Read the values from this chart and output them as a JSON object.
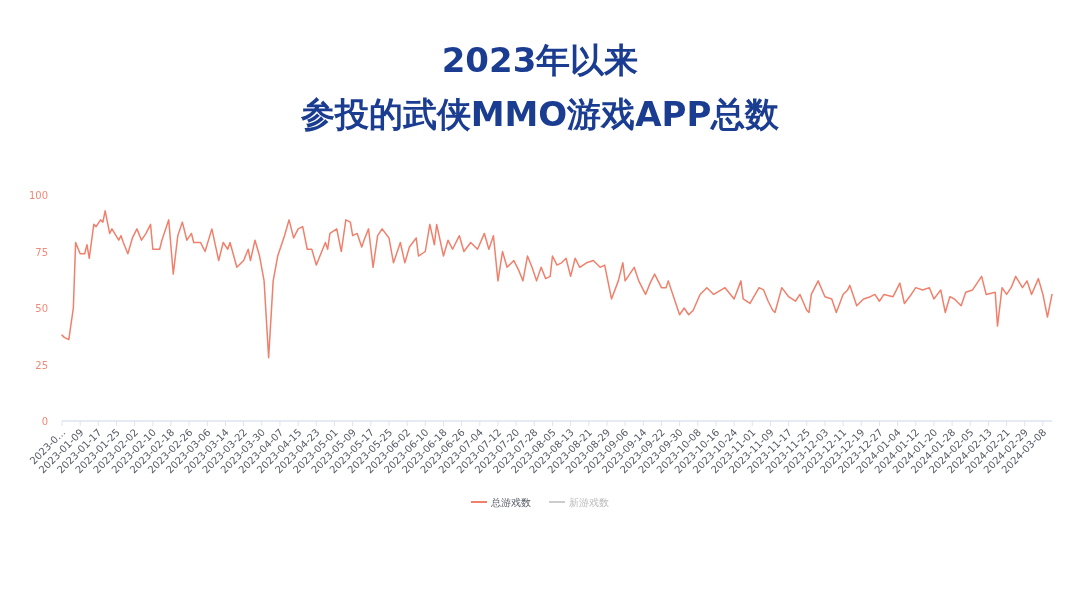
{
  "chart_data": {
    "type": "line",
    "title": "2023年以来",
    "subtitle": "参投的武侠MMO游戏APP总数",
    "x": [
      "2023-01-01",
      "2023-01-02",
      "2023-01-04",
      "2023-01-06",
      "2023-01-07",
      "2023-01-09",
      "2023-01-11",
      "2023-01-12",
      "2023-01-13",
      "2023-01-15",
      "2023-01-16",
      "2023-01-18",
      "2023-01-19",
      "2023-01-20",
      "2023-01-22",
      "2023-01-23",
      "2023-01-26",
      "2023-01-27",
      "2023-01-28",
      "2023-01-30",
      "2023-02-01",
      "2023-02-03",
      "2023-02-05",
      "2023-02-07",
      "2023-02-09",
      "2023-02-10",
      "2023-02-13",
      "2023-02-14",
      "2023-02-17",
      "2023-02-19",
      "2023-02-21",
      "2023-02-23",
      "2023-02-25",
      "2023-02-27",
      "2023-02-28",
      "2023-03-03",
      "2023-03-05",
      "2023-03-08",
      "2023-03-11",
      "2023-03-13",
      "2023-03-15",
      "2023-03-16",
      "2023-03-19",
      "2023-03-22",
      "2023-03-24",
      "2023-03-25",
      "2023-03-27",
      "2023-03-29",
      "2023-03-31",
      "2023-04-02",
      "2023-04-04",
      "2023-04-06",
      "2023-04-09",
      "2023-04-11",
      "2023-04-13",
      "2023-04-15",
      "2023-04-17",
      "2023-04-19",
      "2023-04-21",
      "2023-04-23",
      "2023-04-27",
      "2023-04-28",
      "2023-04-29",
      "2023-05-02",
      "2023-05-04",
      "2023-05-06",
      "2023-05-08",
      "2023-05-09",
      "2023-05-11",
      "2023-05-13",
      "2023-05-14",
      "2023-05-16",
      "2023-05-18",
      "2023-05-20",
      "2023-05-22",
      "2023-05-25",
      "2023-05-27",
      "2023-05-30",
      "2023-06-01",
      "2023-06-03",
      "2023-06-06",
      "2023-06-07",
      "2023-06-10",
      "2023-06-12",
      "2023-06-14",
      "2023-06-15",
      "2023-06-18",
      "2023-06-20",
      "2023-06-22",
      "2023-06-25",
      "2023-06-27",
      "2023-06-30",
      "2023-07-03",
      "2023-07-06",
      "2023-07-08",
      "2023-07-10",
      "2023-07-12",
      "2023-07-14",
      "2023-07-16",
      "2023-07-19",
      "2023-07-21",
      "2023-07-23",
      "2023-07-25",
      "2023-07-27",
      "2023-07-29",
      "2023-07-31",
      "2023-08-02",
      "2023-08-04",
      "2023-08-05",
      "2023-08-07",
      "2023-08-09",
      "2023-08-11",
      "2023-08-13",
      "2023-08-15",
      "2023-08-17",
      "2023-08-20",
      "2023-08-23",
      "2023-08-26",
      "2023-08-28",
      "2023-08-31",
      "2023-09-03",
      "2023-09-05",
      "2023-09-06",
      "2023-09-10",
      "2023-09-12",
      "2023-09-15",
      "2023-09-17",
      "2023-09-19",
      "2023-09-22",
      "2023-09-24",
      "2023-09-25",
      "2023-09-28",
      "2023-09-30",
      "2023-10-02",
      "2023-10-04",
      "2023-10-06",
      "2023-10-09",
      "2023-10-12",
      "2023-10-15",
      "2023-10-20",
      "2023-10-24",
      "2023-10-27",
      "2023-10-28",
      "2023-10-31",
      "2023-11-04",
      "2023-11-06",
      "2023-11-08",
      "2023-11-10",
      "2023-11-11",
      "2023-11-14",
      "2023-11-17",
      "2023-11-20",
      "2023-11-22",
      "2023-11-25",
      "2023-11-26",
      "2023-11-27",
      "2023-11-30",
      "2023-12-03",
      "2023-12-06",
      "2023-12-08",
      "2023-12-11",
      "2023-12-13",
      "2023-12-14",
      "2023-12-17",
      "2023-12-20",
      "2023-12-23",
      "2023-12-25",
      "2023-12-27",
      "2023-12-29",
      "2024-01-02",
      "2024-01-05",
      "2024-01-07",
      "2024-01-10",
      "2024-01-12",
      "2024-01-15",
      "2024-01-18",
      "2024-01-20",
      "2024-01-23",
      "2024-01-25",
      "2024-01-27",
      "2024-01-29",
      "2024-02-01",
      "2024-02-03",
      "2024-02-06",
      "2024-02-10",
      "2024-02-12",
      "2024-02-16",
      "2024-02-17",
      "2024-02-19",
      "2024-02-21",
      "2024-02-23",
      "2024-02-25",
      "2024-02-28",
      "2024-03-01",
      "2024-03-03",
      "2024-03-06",
      "2024-03-08",
      "2024-03-10",
      "2024-03-12"
    ],
    "series": [
      {
        "name": "总游戏数",
        "color": "#f0806c",
        "values": [
          38,
          37,
          36,
          50,
          79,
          74,
          74,
          78,
          72,
          87,
          86,
          89,
          88,
          93,
          83,
          85,
          80,
          82,
          79,
          74,
          81,
          85,
          80,
          83,
          87,
          76,
          76,
          80,
          89,
          65,
          82,
          88,
          80,
          83,
          79,
          79,
          75,
          85,
          71,
          79,
          76,
          79,
          68,
          71,
          76,
          71,
          80,
          73,
          62,
          28,
          62,
          73,
          82,
          89,
          81,
          85,
          86,
          76,
          76,
          69,
          79,
          76,
          83,
          85,
          75,
          89,
          88,
          82,
          83,
          77,
          80,
          85,
          68,
          82,
          85,
          81,
          70,
          79,
          70,
          77,
          81,
          73,
          75,
          87,
          78,
          87,
          73,
          80,
          76,
          82,
          75,
          79,
          76,
          83,
          76,
          82,
          62,
          75,
          68,
          71,
          67,
          62,
          73,
          68,
          62,
          68,
          63,
          64,
          73,
          69,
          70,
          72,
          64,
          72,
          68,
          70,
          71,
          68,
          69,
          54,
          62,
          70,
          62,
          68,
          62,
          56,
          61,
          65,
          59,
          59,
          62,
          53,
          47,
          50,
          47,
          49,
          56,
          59,
          56,
          59,
          54,
          62,
          54,
          52,
          59,
          58,
          53,
          49,
          48,
          59,
          55,
          53,
          56,
          49,
          48,
          56,
          62,
          55,
          54,
          48,
          56,
          58,
          60,
          51,
          54,
          55,
          56,
          53,
          56,
          55,
          61,
          52,
          56,
          59,
          58,
          59,
          54,
          58,
          48,
          55,
          54,
          51,
          57,
          58,
          64,
          56,
          57,
          42,
          59,
          56,
          59,
          64,
          59,
          62,
          56,
          63,
          56,
          46,
          56
        ]
      },
      {
        "name": "新游戏数",
        "color": "#cccccc",
        "values": [
          null,
          null,
          null,
          null,
          null,
          null,
          null,
          null,
          null,
          null,
          null,
          null,
          null,
          null,
          null,
          null,
          null,
          null,
          null,
          null,
          null,
          null,
          null,
          null,
          null,
          null,
          null,
          null,
          null,
          null,
          null,
          null,
          null,
          null,
          null,
          null,
          null,
          null,
          null,
          null,
          null,
          null,
          null,
          null,
          null,
          null,
          null,
          null,
          null,
          null,
          null,
          null,
          null,
          null,
          null,
          null,
          null,
          null,
          null,
          null,
          null,
          null,
          null,
          null,
          null,
          null,
          null,
          null,
          null,
          null,
          null,
          null,
          null,
          null,
          null,
          null,
          null,
          null,
          null,
          null,
          null,
          null,
          null,
          null,
          null,
          null,
          null,
          null,
          null,
          null,
          null,
          null,
          null,
          null,
          null,
          null,
          null,
          null,
          null,
          null,
          null,
          null,
          null,
          null,
          null,
          null,
          null,
          null,
          null,
          null,
          null,
          null,
          null,
          null,
          null,
          null,
          null,
          null,
          null,
          null,
          null,
          null,
          null,
          null,
          null,
          null,
          null,
          null,
          null,
          null,
          null,
          null,
          null,
          null,
          null,
          null,
          null,
          null,
          null,
          null,
          null,
          null,
          null,
          null,
          null,
          null,
          null,
          null,
          null,
          null,
          null,
          null,
          null,
          null,
          null,
          null,
          null,
          null,
          null,
          null,
          null,
          null,
          null,
          null,
          null,
          null,
          null,
          null,
          null,
          null,
          null,
          null,
          null,
          null,
          null,
          null,
          null,
          null,
          null,
          null,
          null,
          null,
          null,
          null,
          null,
          null,
          null,
          null,
          null,
          null,
          null,
          null,
          null,
          null,
          null,
          null,
          null,
          null,
          null
        ]
      }
    ],
    "xlim": [
      "2023-01-01",
      "2024-03-12"
    ],
    "xticks": [
      {
        "value": "2023-01-01",
        "label": "2023-0…"
      },
      "2023-01-09",
      "2023-01-17",
      "2023-01-25",
      "2023-02-02",
      "2023-02-10",
      "2023-02-18",
      "2023-02-26",
      "2023-03-06",
      "2023-03-14",
      "2023-03-22",
      "2023-03-30",
      "2023-04-07",
      "2023-04-15",
      "2023-04-23",
      "2023-05-01",
      "2023-05-09",
      "2023-05-17",
      "2023-05-25",
      "2023-06-02",
      "2023-06-10",
      "2023-06-18",
      "2023-06-26",
      "2023-07-04",
      "2023-07-12",
      "2023-07-20",
      "2023-07-28",
      "2023-08-05",
      "2023-08-13",
      "2023-08-21",
      "2023-08-29",
      "2023-09-06",
      "2023-09-14",
      "2023-09-22",
      "2023-09-30",
      "2023-10-08",
      "2023-10-16",
      "2023-10-24",
      "2023-11-01",
      "2023-11-09",
      "2023-11-17",
      "2023-11-25",
      "2023-12-03",
      "2023-12-11",
      "2023-12-19",
      "2023-12-27",
      "2024-01-04",
      "2024-01-12",
      "2024-01-20",
      "2024-01-28",
      "2024-02-05",
      "2024-02-13",
      "2024-02-21",
      "2024-02-29",
      "2024-03-08"
    ],
    "ylim": [
      0,
      100
    ],
    "yticks": [
      0,
      25,
      50,
      75,
      100
    ],
    "legend": "bottom"
  }
}
